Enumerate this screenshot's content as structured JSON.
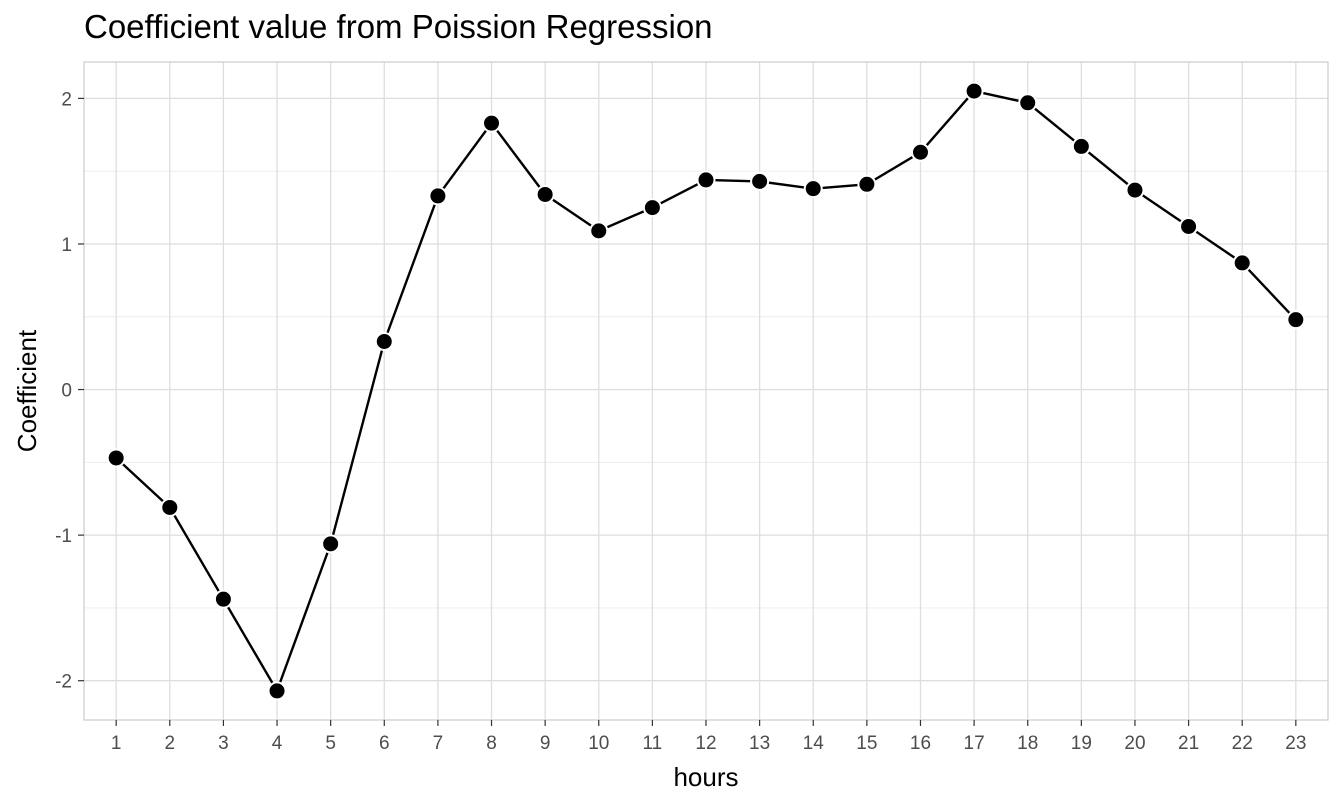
{
  "chart_data": {
    "type": "line",
    "title": "Coefficient value from Poission Regression",
    "xlabel": "hours",
    "ylabel": "Coefficient",
    "x": [
      1,
      2,
      3,
      4,
      5,
      6,
      7,
      8,
      9,
      10,
      11,
      12,
      13,
      14,
      15,
      16,
      17,
      18,
      19,
      20,
      21,
      22,
      23
    ],
    "x_tick_labels": [
      "1",
      "2",
      "3",
      "4",
      "5",
      "6",
      "7",
      "8",
      "9",
      "10",
      "11",
      "12",
      "13",
      "14",
      "15",
      "16",
      "17",
      "18",
      "19",
      "20",
      "21",
      "22",
      "23"
    ],
    "y": [
      -0.47,
      -0.81,
      -1.44,
      -2.07,
      -1.06,
      0.33,
      1.33,
      1.83,
      1.34,
      1.09,
      1.25,
      1.44,
      1.43,
      1.38,
      1.41,
      1.63,
      2.05,
      1.97,
      1.67,
      1.37,
      1.12,
      0.87,
      0.48
    ],
    "y_ticks": [
      -2,
      -1,
      0,
      1,
      2
    ],
    "y_tick_labels": [
      "-2",
      "-1",
      "0",
      "1",
      "2"
    ],
    "xlim": [
      0.4,
      23.6
    ],
    "ylim": [
      -2.27,
      2.25
    ],
    "grid": true,
    "legend": "none",
    "colors": {
      "line": "#000000",
      "point": "#000000",
      "point_edge": "#ffffff",
      "grid": "#ebebeb",
      "panel_border": "#cccccc"
    }
  }
}
